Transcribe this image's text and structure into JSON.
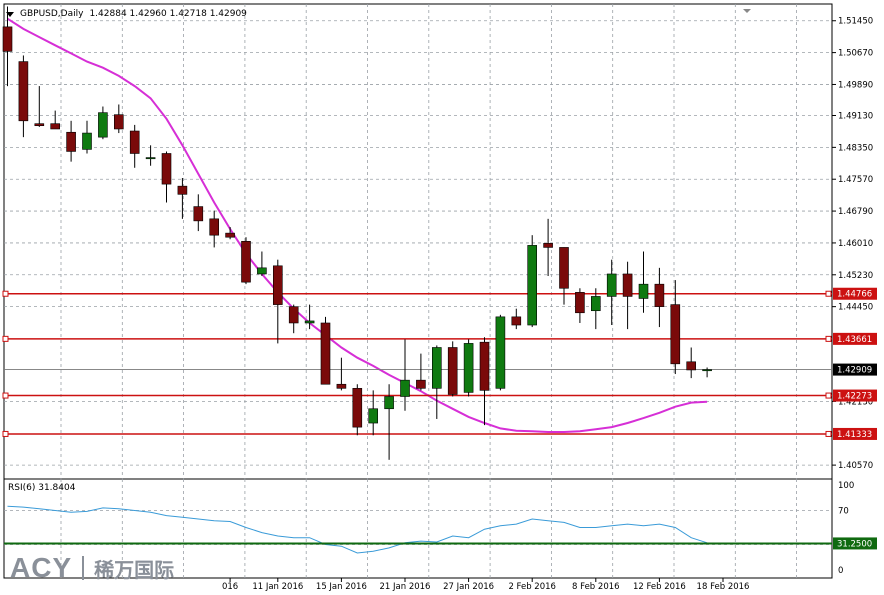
{
  "header": {
    "symbol": "GBPUSD,Daily",
    "ohlc": "1.42884 1.42960 1.42718 1.42909"
  },
  "rsi": {
    "label": "RSI(6) 31.8404"
  },
  "watermark": {
    "logo": "ACY",
    "chinese": "稀万国际"
  },
  "colors": {
    "bull": "#0f7a10",
    "bear": "#7a0a0a",
    "ma": "#d62fd6",
    "hline": "#cc1111",
    "rsi_line": "#3a9bd8",
    "rsi_level": "#0f6a10",
    "grid": "#9aa0a6"
  },
  "chart_data": {
    "type": "candlestick",
    "price_axis": {
      "ylim": [
        1.4023,
        1.5186
      ],
      "ticks": [
        "1.51450",
        "1.50670",
        "1.49890",
        "1.49130",
        "1.48350",
        "1.47570",
        "1.46790",
        "1.46010",
        "1.45230",
        "1.44450",
        "1.42130",
        "1.40570"
      ]
    },
    "x_labels": [
      {
        "label": "016",
        "index": 14
      },
      {
        "label": "11 Jan 2016",
        "index": 17
      },
      {
        "label": "15 Jan 2016",
        "index": 21
      },
      {
        "label": "21 Jan 2016",
        "index": 25
      },
      {
        "label": "27 Jan 2016",
        "index": 29
      },
      {
        "label": "2 Feb 2016",
        "index": 33
      },
      {
        "label": "8 Feb 2016",
        "index": 37
      },
      {
        "label": "12 Feb 2016",
        "index": 41
      },
      {
        "label": "18 Feb 2016",
        "index": 45
      }
    ],
    "candles": [
      {
        "o": 1.513,
        "h": 1.518,
        "l": 1.4985,
        "c": 1.507
      },
      {
        "o": 1.5045,
        "h": 1.506,
        "l": 1.486,
        "c": 1.49
      },
      {
        "o": 1.4893,
        "h": 1.4985,
        "l": 1.4885,
        "c": 1.4888
      },
      {
        "o": 1.4893,
        "h": 1.4925,
        "l": 1.488,
        "c": 1.488
      },
      {
        "o": 1.4872,
        "h": 1.49,
        "l": 1.48,
        "c": 1.4825
      },
      {
        "o": 1.483,
        "h": 1.49,
        "l": 1.482,
        "c": 1.487
      },
      {
        "o": 1.486,
        "h": 1.4935,
        "l": 1.4855,
        "c": 1.492
      },
      {
        "o": 1.4915,
        "h": 1.494,
        "l": 1.487,
        "c": 1.488
      },
      {
        "o": 1.4875,
        "h": 1.489,
        "l": 1.4785,
        "c": 1.482
      },
      {
        "o": 1.481,
        "h": 1.484,
        "l": 1.479,
        "c": 1.481
      },
      {
        "o": 1.482,
        "h": 1.4825,
        "l": 1.47,
        "c": 1.4745
      },
      {
        "o": 1.474,
        "h": 1.476,
        "l": 1.466,
        "c": 1.472
      },
      {
        "o": 1.469,
        "h": 1.472,
        "l": 1.463,
        "c": 1.4655
      },
      {
        "o": 1.466,
        "h": 1.468,
        "l": 1.459,
        "c": 1.462
      },
      {
        "o": 1.4625,
        "h": 1.464,
        "l": 1.461,
        "c": 1.4615
      },
      {
        "o": 1.4605,
        "h": 1.4615,
        "l": 1.45,
        "c": 1.4505
      },
      {
        "o": 1.4525,
        "h": 1.458,
        "l": 1.452,
        "c": 1.454
      },
      {
        "o": 1.4545,
        "h": 1.456,
        "l": 1.4355,
        "c": 1.445
      },
      {
        "o": 1.4445,
        "h": 1.445,
        "l": 1.438,
        "c": 1.4405
      },
      {
        "o": 1.4405,
        "h": 1.445,
        "l": 1.439,
        "c": 1.441
      },
      {
        "o": 1.4405,
        "h": 1.442,
        "l": 1.426,
        "c": 1.4255
      },
      {
        "o": 1.4255,
        "h": 1.432,
        "l": 1.424,
        "c": 1.4245
      },
      {
        "o": 1.4245,
        "h": 1.4255,
        "l": 1.413,
        "c": 1.415
      },
      {
        "o": 1.416,
        "h": 1.424,
        "l": 1.413,
        "c": 1.4195
      },
      {
        "o": 1.4195,
        "h": 1.4255,
        "l": 1.407,
        "c": 1.4225
      },
      {
        "o": 1.4225,
        "h": 1.4365,
        "l": 1.419,
        "c": 1.4265
      },
      {
        "o": 1.4265,
        "h": 1.433,
        "l": 1.424,
        "c": 1.4245
      },
      {
        "o": 1.4245,
        "h": 1.435,
        "l": 1.417,
        "c": 1.4345
      },
      {
        "o": 1.4345,
        "h": 1.436,
        "l": 1.4225,
        "c": 1.423
      },
      {
        "o": 1.4235,
        "h": 1.4365,
        "l": 1.4225,
        "c": 1.4355
      },
      {
        "o": 1.4358,
        "h": 1.437,
        "l": 1.4155,
        "c": 1.424
      },
      {
        "o": 1.4245,
        "h": 1.4425,
        "l": 1.424,
        "c": 1.442
      },
      {
        "o": 1.442,
        "h": 1.444,
        "l": 1.439,
        "c": 1.44
      },
      {
        "o": 1.44,
        "h": 1.462,
        "l": 1.4395,
        "c": 1.4595
      },
      {
        "o": 1.46,
        "h": 1.466,
        "l": 1.452,
        "c": 1.459
      },
      {
        "o": 1.459,
        "h": 1.459,
        "l": 1.445,
        "c": 1.449
      },
      {
        "o": 1.448,
        "h": 1.449,
        "l": 1.4405,
        "c": 1.443
      },
      {
        "o": 1.4435,
        "h": 1.449,
        "l": 1.439,
        "c": 1.447
      },
      {
        "o": 1.447,
        "h": 1.456,
        "l": 1.44,
        "c": 1.4525
      },
      {
        "o": 1.4525,
        "h": 1.4555,
        "l": 1.439,
        "c": 1.447
      },
      {
        "o": 1.4465,
        "h": 1.458,
        "l": 1.443,
        "c": 1.45
      },
      {
        "o": 1.45,
        "h": 1.454,
        "l": 1.4395,
        "c": 1.4445
      },
      {
        "o": 1.445,
        "h": 1.451,
        "l": 1.428,
        "c": 1.4305
      },
      {
        "o": 1.431,
        "h": 1.4345,
        "l": 1.427,
        "c": 1.429
      },
      {
        "o": 1.4288,
        "h": 1.4296,
        "l": 1.4272,
        "c": 1.4291
      }
    ],
    "moving_average": [
      1.515,
      1.5125,
      1.5105,
      1.5085,
      1.5065,
      1.5045,
      1.503,
      1.501,
      1.4985,
      1.4955,
      1.4905,
      1.484,
      1.477,
      1.47,
      1.4635,
      1.4575,
      1.4525,
      1.448,
      1.444,
      1.4405,
      1.4375,
      1.4345,
      1.432,
      1.43,
      1.4278,
      1.4258,
      1.4238,
      1.4215,
      1.4195,
      1.4175,
      1.416,
      1.4147,
      1.4141,
      1.414,
      1.4138,
      1.4138,
      1.414,
      1.4145,
      1.415,
      1.416,
      1.4172,
      1.4185,
      1.42,
      1.421,
      1.4212
    ],
    "horizontal_lines": [
      {
        "value": 1.44766,
        "label": "1.44766"
      },
      {
        "value": 1.43661,
        "label": "1.43661"
      },
      {
        "value": 1.42273,
        "label": "1.42273"
      },
      {
        "value": 1.41333,
        "label": "1.41333"
      }
    ],
    "current_price": {
      "value": 1.42909,
      "label": "1.42909"
    },
    "rsi_axis": {
      "ylim": [
        0,
        100
      ],
      "ticks": [
        "100",
        "70",
        "30",
        "0"
      ]
    },
    "rsi_level": {
      "value": 31.25,
      "label": "31.2500"
    },
    "rsi_values": [
      75,
      74,
      72,
      70,
      68,
      69,
      73,
      72,
      70,
      68,
      64,
      62,
      60,
      58,
      57,
      50,
      44,
      40,
      38,
      38,
      30,
      28,
      20,
      22,
      26,
      32,
      34,
      33,
      40,
      38,
      48,
      52,
      54,
      60,
      58,
      56,
      50,
      50,
      52,
      54,
      52,
      54,
      50,
      38,
      32
    ]
  }
}
